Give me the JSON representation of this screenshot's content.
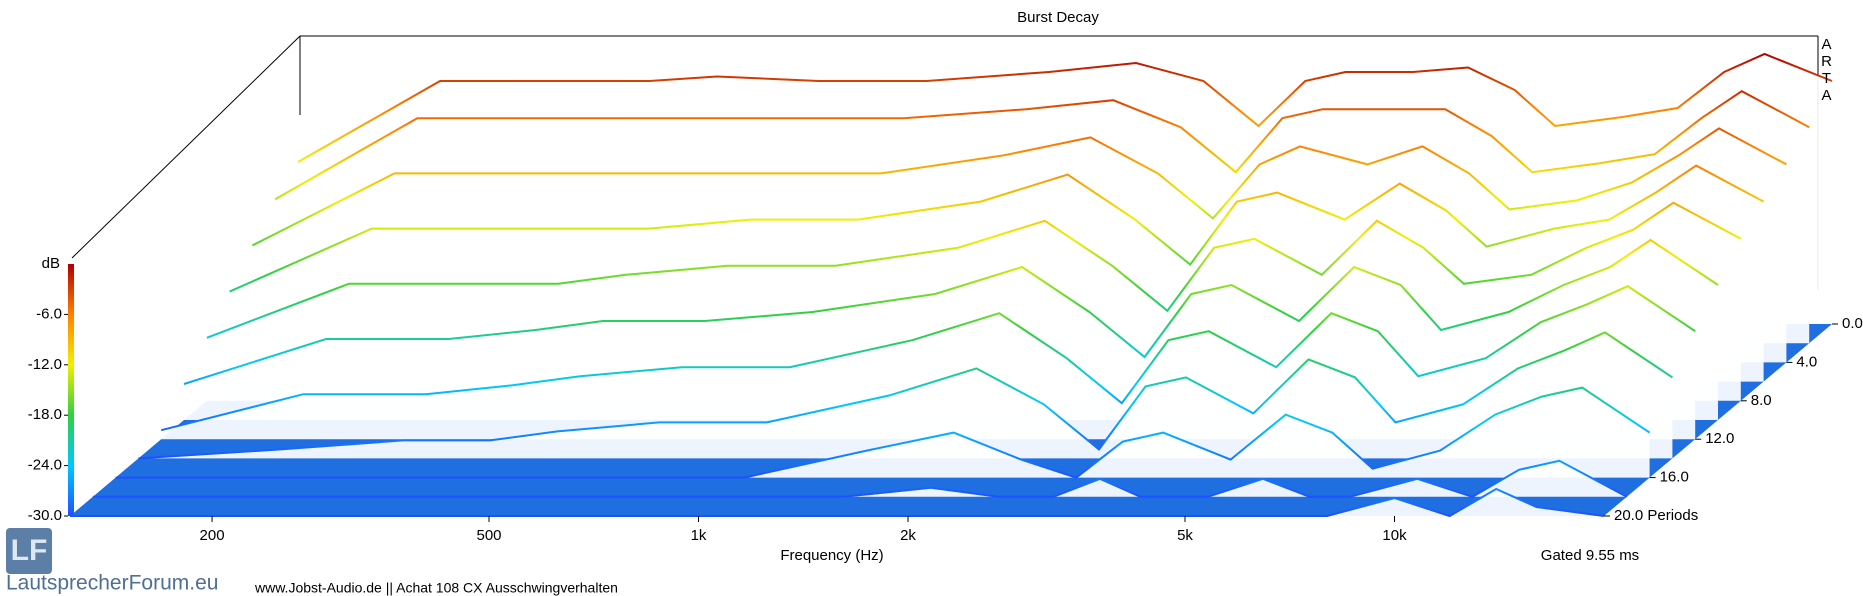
{
  "chart_data": {
    "type": "waterfall",
    "title": "Burst Decay",
    "xlabel": "Frequency (Hz)",
    "zlabel": "dB",
    "note": "Gated 9.55 ms",
    "watermark": "ARTA",
    "log_x": true,
    "xlim": [
      125,
      20000
    ],
    "xticks": [
      200,
      500,
      {
        "value": 1000,
        "label": "1k"
      },
      {
        "value": 2000,
        "label": "2k"
      },
      {
        "value": 5000,
        "label": "5k"
      },
      {
        "value": 10000,
        "label": "10k"
      }
    ],
    "ylim": [
      0,
      20
    ],
    "yticks": [
      {
        "value": 0,
        "label": "0.0"
      },
      {
        "value": 4,
        "label": "4.0"
      },
      {
        "value": 8,
        "label": "8.0"
      },
      {
        "value": 12,
        "label": "12.0"
      },
      {
        "value": 16,
        "label": "16.0"
      },
      {
        "value": 20,
        "label": "20.0 Periods"
      }
    ],
    "zlim": [
      -30,
      0
    ],
    "zticks": [
      {
        "value": -6,
        "label": "-6.0"
      },
      {
        "value": -12,
        "label": "-12.0"
      },
      {
        "value": -18,
        "label": "-18.0"
      },
      {
        "value": -24,
        "label": "-24.0"
      },
      {
        "value": -30,
        "label": "-30.0"
      }
    ],
    "floor_color": "#1f6fe0",
    "colormap": [
      "#1e50ff",
      "#00c8ff",
      "#30d040",
      "#f0f000",
      "#ff8000",
      "#b00000"
    ],
    "x": [
      125,
      200,
      300,
      400,
      500,
      700,
      1000,
      1500,
      2000,
      2500,
      3000,
      3500,
      4000,
      5000,
      6000,
      7000,
      8000,
      10000,
      12000,
      14000,
      16000,
      20000
    ],
    "series": [
      {
        "period": 0,
        "values": [
          -12,
          -3,
          -3,
          -3,
          -2.5,
          -3,
          -3,
          -2,
          -1,
          -3,
          -8,
          -3,
          -2,
          -2,
          -1.5,
          -4,
          -8,
          -7,
          -6,
          -2,
          0,
          -3
        ]
      },
      {
        "period": 2,
        "values": [
          -14,
          -5,
          -5,
          -5,
          -5,
          -5,
          -5,
          -4,
          -3,
          -6,
          -11,
          -5,
          -4,
          -4,
          -4,
          -7,
          -11,
          -10,
          -9,
          -5,
          -2,
          -6
        ]
      },
      {
        "period": 4,
        "values": [
          -17,
          -9,
          -9,
          -9,
          -9,
          -9,
          -9,
          -7,
          -5,
          -9,
          -14,
          -8,
          -6,
          -8,
          -6,
          -9,
          -13,
          -12,
          -10,
          -7,
          -4,
          -8
        ]
      },
      {
        "period": 6,
        "values": [
          -20,
          -13,
          -13,
          -13,
          -13,
          -12,
          -12,
          -10,
          -7,
          -12,
          -17,
          -10,
          -9,
          -12,
          -8,
          -11,
          -15,
          -13,
          -12,
          -9,
          -6,
          -10
        ]
      },
      {
        "period": 8,
        "values": [
          -23,
          -17,
          -17,
          -17,
          -16,
          -15,
          -15,
          -13,
          -10,
          -15,
          -20,
          -13,
          -12,
          -16,
          -10,
          -13,
          -17,
          -16,
          -13,
          -11,
          -8,
          -12
        ]
      },
      {
        "period": 10,
        "values": [
          -26,
          -21,
          -21,
          -20,
          -19,
          -19,
          -18,
          -16,
          -13,
          -18,
          -23,
          -16,
          -15,
          -19,
          -13,
          -15,
          -20,
          -18,
          -15,
          -13,
          -10,
          -15
        ]
      },
      {
        "period": 12,
        "values": [
          -29,
          -25,
          -25,
          -24,
          -23,
          -22,
          -22,
          -19,
          -16,
          -21,
          -26,
          -19,
          -18,
          -22,
          -16,
          -18,
          -23,
          -21,
          -17,
          -15,
          -13,
          -18
        ]
      },
      {
        "period": 14,
        "values": [
          -30,
          -29,
          -28,
          -28,
          -27,
          -26,
          -26,
          -23,
          -20,
          -24,
          -29,
          -22,
          -21,
          -25,
          -19,
          -21,
          -26,
          -24,
          -20,
          -18,
          -16,
          -21
        ]
      },
      {
        "period": 16,
        "values": [
          -30,
          -30,
          -30,
          -30,
          -30,
          -30,
          -30,
          -27,
          -25,
          -28,
          -30,
          -26,
          -25,
          -28,
          -23,
          -25,
          -29,
          -27,
          -23,
          -21,
          -20,
          -25
        ]
      },
      {
        "period": 18,
        "values": [
          -30,
          -30,
          -30,
          -30,
          -30,
          -30,
          -30,
          -30,
          -29,
          -30,
          -30,
          -28,
          -30,
          -30,
          -28,
          -30,
          -30,
          -28,
          -30,
          -27,
          -26,
          -30
        ]
      },
      {
        "period": 20,
        "values": [
          -30,
          -30,
          -30,
          -30,
          -30,
          -30,
          -30,
          -30,
          -30,
          -30,
          -30,
          -30,
          -30,
          -30,
          -30,
          -30,
          -30,
          -28,
          -30,
          -27,
          -29,
          -30
        ]
      }
    ]
  },
  "logo": {
    "mark": "LF",
    "site": "LautsprecherForum.eu"
  },
  "footer": "www.Jobst-Audio.de || Achat 108 CX  Ausschwingverhalten"
}
